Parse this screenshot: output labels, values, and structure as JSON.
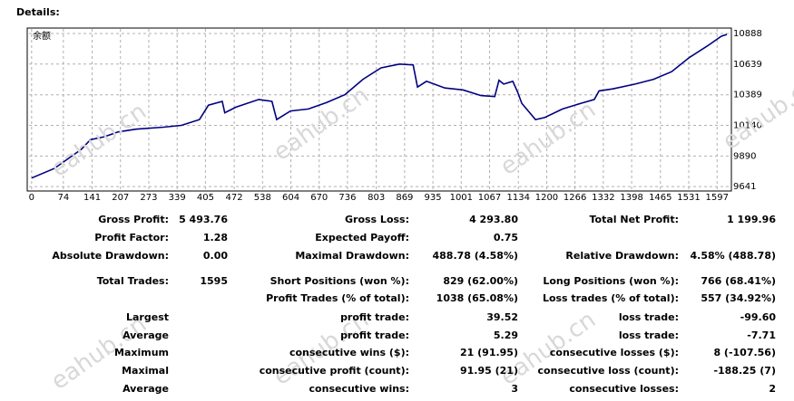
{
  "header": {
    "title": "Details:"
  },
  "watermark": "eahub.cn",
  "chart_data": {
    "type": "line",
    "series": [
      {
        "name": "余额",
        "color": "#000080",
        "x": [
          0,
          53,
          116,
          137,
          169,
          201,
          243,
          307,
          349,
          391,
          412,
          444,
          450,
          476,
          529,
          560,
          571,
          603,
          645,
          688,
          730,
          772,
          814,
          857,
          889,
          899,
          920,
          963,
          1005,
          1047,
          1079,
          1089,
          1100,
          1121,
          1132,
          1142,
          1174,
          1195,
          1237,
          1280,
          1311,
          1322,
          1354,
          1406,
          1449,
          1491,
          1533,
          1575,
          1607,
          1620
        ],
        "values": [
          9711,
          9789,
          9945,
          10023,
          10047,
          10086,
          10109,
          10125,
          10140,
          10187,
          10304,
          10335,
          10242,
          10288,
          10351,
          10335,
          10187,
          10257,
          10273,
          10327,
          10390,
          10515,
          10608,
          10639,
          10632,
          10452,
          10499,
          10444,
          10429,
          10382,
          10374,
          10507,
          10476,
          10499,
          10413,
          10320,
          10187,
          10203,
          10273,
          10320,
          10351,
          10421,
          10437,
          10476,
          10515,
          10577,
          10694,
          10788,
          10866,
          10881
        ]
      }
    ],
    "xlim": [
      -6,
      1624
    ],
    "xticks": [
      0,
      74,
      141,
      207,
      273,
      339,
      405,
      472,
      538,
      604,
      670,
      736,
      803,
      869,
      935,
      1001,
      1067,
      1134,
      1200,
      1266,
      1332,
      1398,
      1465,
      1531,
      1597
    ],
    "ylim": [
      9620,
      10925
    ],
    "yticks": [
      9641,
      9890,
      10140,
      10389,
      10639,
      10888
    ],
    "grid": true
  },
  "stats": {
    "rows": [
      {
        "c1": "Gross Profit:",
        "v1": "5 493.76",
        "c2": "Gross Loss:",
        "v2": "4 293.80",
        "c3": "Total Net Profit:",
        "v3": "1 199.96"
      },
      {
        "c1": "Profit Factor:",
        "v1": "1.28",
        "c2": "Expected Payoff:",
        "v2": "0.75"
      },
      {
        "c1": "Absolute Drawdown:",
        "v1": "0.00",
        "c2": "Maximal Drawdown:",
        "v2": "488.78 (4.58%)",
        "c3": "Relative Drawdown:",
        "v3": "4.58% (488.78)"
      },
      {
        "c1": "Total Trades:",
        "v1": "1595",
        "c2": "Short Positions (won %):",
        "v2": "829 (62.00%)",
        "c3": "Long Positions (won %):",
        "v3": "766 (68.41%)"
      },
      {
        "c2": "Profit Trades (% of total):",
        "v2": "1038 (65.08%)",
        "c3": "Loss trades (% of total):",
        "v3": "557 (34.92%)"
      },
      {
        "c1": "Largest",
        "c2": "profit trade:",
        "v2": "39.52",
        "c3": "loss trade:",
        "v3": "-99.60"
      },
      {
        "c1": "Average",
        "c2": "profit trade:",
        "v2": "5.29",
        "c3": "loss trade:",
        "v3": "-7.71"
      },
      {
        "c1": "Maximum",
        "c2": "consecutive wins ($):",
        "v2": "21 (91.95)",
        "c3": "consecutive losses ($):",
        "v3": "8 (-107.56)"
      },
      {
        "c1": "Maximal",
        "c2": "consecutive profit (count):",
        "v2": "91.95 (21)",
        "c3": "consecutive loss (count):",
        "v3": "-188.25 (7)"
      },
      {
        "c1": "Average",
        "c2": "consecutive wins:",
        "v2": "3",
        "c3": "consecutive losses:",
        "v3": "2"
      }
    ]
  }
}
